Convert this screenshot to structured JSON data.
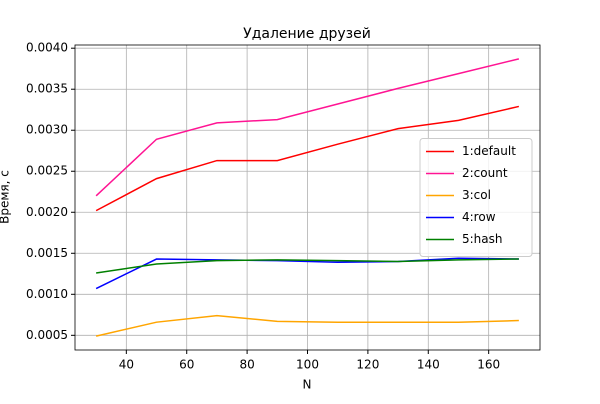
{
  "chart_data": {
    "type": "line",
    "title": "Удаление друзей",
    "xlabel": "N",
    "ylabel": "Время, с",
    "x": [
      30,
      50,
      70,
      90,
      110,
      130,
      150,
      170
    ],
    "series": [
      {
        "name": "1:default",
        "color": "#ff0000",
        "values": [
          0.00202,
          0.00241,
          0.00263,
          0.00263,
          0.00283,
          0.00302,
          0.00312,
          0.00329
        ]
      },
      {
        "name": "2:count",
        "color": "#ff1493",
        "values": [
          0.0022,
          0.00289,
          0.00309,
          0.00313,
          0.00332,
          0.00351,
          0.00369,
          0.00387
        ]
      },
      {
        "name": "3:col",
        "color": "#ffa500",
        "values": [
          0.00049,
          0.00066,
          0.00074,
          0.00067,
          0.00066,
          0.00066,
          0.00066,
          0.00068
        ]
      },
      {
        "name": "4:row",
        "color": "#0000ff",
        "values": [
          0.00107,
          0.00143,
          0.00142,
          0.00141,
          0.00139,
          0.0014,
          0.00144,
          0.00143
        ]
      },
      {
        "name": "5:hash",
        "color": "#008000",
        "values": [
          0.00126,
          0.00137,
          0.00141,
          0.00142,
          0.00141,
          0.0014,
          0.00142,
          0.00143
        ]
      }
    ],
    "xlim": [
      23,
      177
    ],
    "ylim": [
      0.000321,
      0.004039
    ],
    "xticks": [
      40,
      60,
      80,
      100,
      120,
      140,
      160
    ],
    "yticks": [
      0.0005,
      {
        "value": 0.001,
        "label": "0.0010"
      },
      0.0015,
      {
        "value": 0.002,
        "label": "0.0020"
      },
      0.0025,
      {
        "value": 0.003,
        "label": "0.0030"
      },
      0.0035,
      {
        "value": 0.004,
        "label": "0.0040"
      }
    ],
    "grid": true,
    "legend": "center right"
  }
}
